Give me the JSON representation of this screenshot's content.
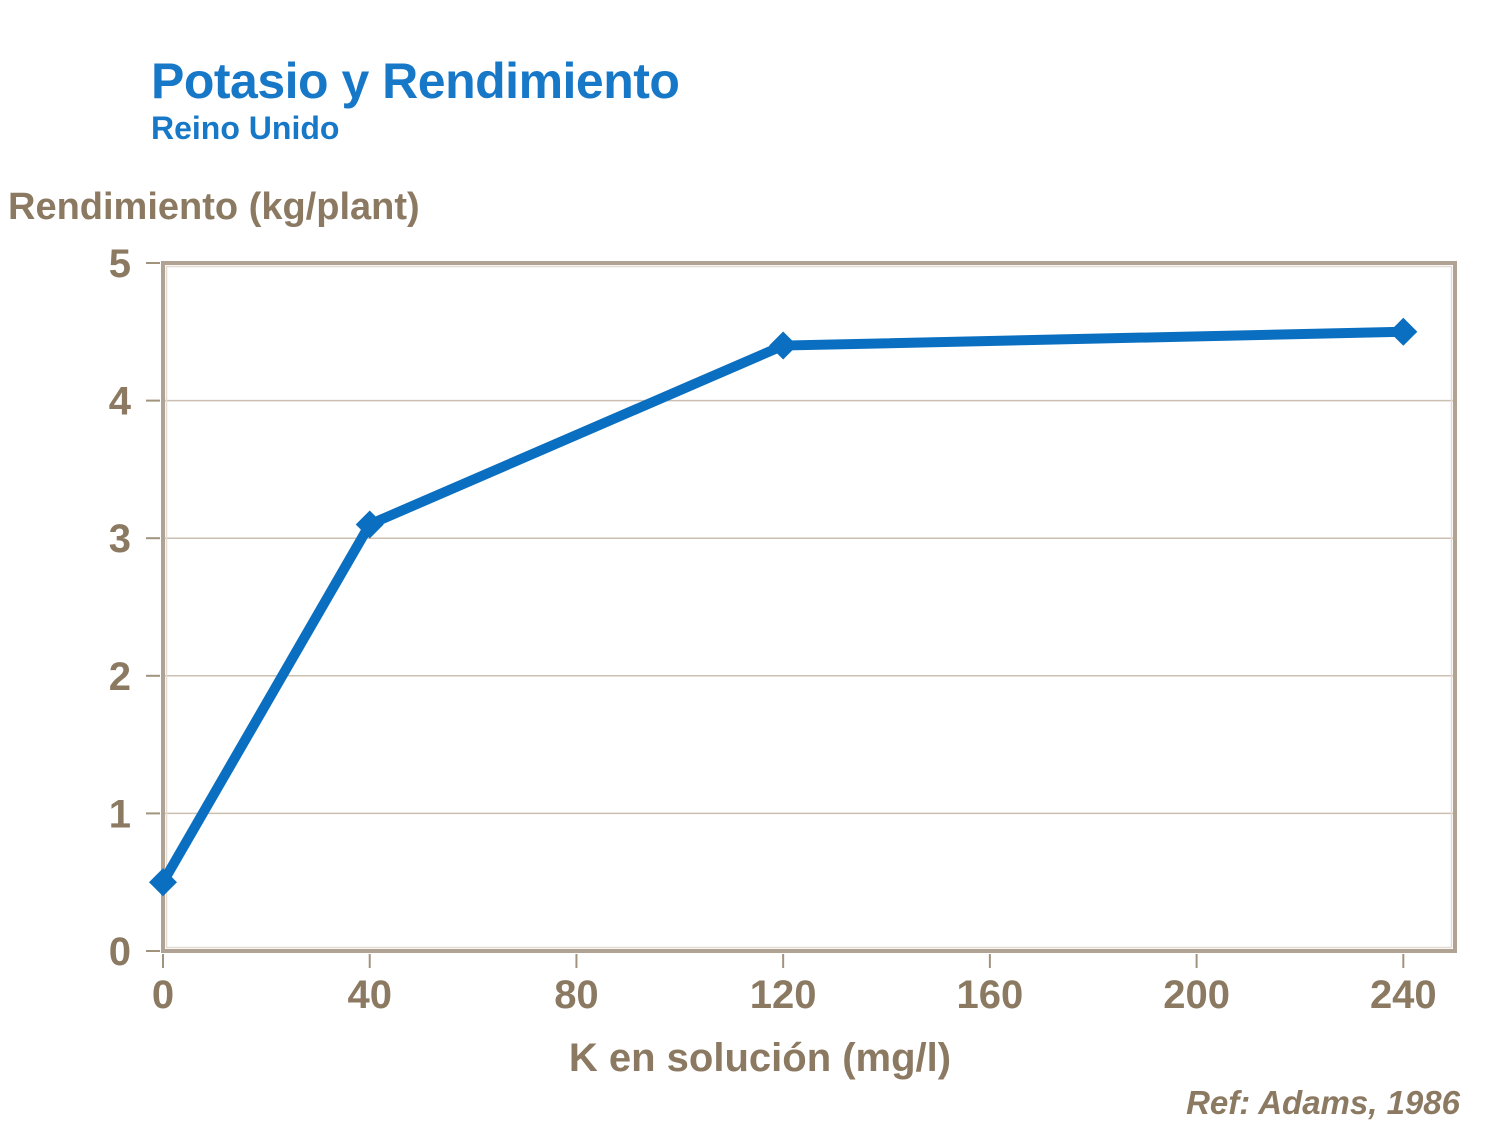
{
  "chart_data": {
    "type": "line",
    "title": "Potasio y Rendimiento",
    "subtitle": "Reino Unido",
    "xlabel": "K en solución (mg/l)",
    "ylabel": "Rendimiento (kg/plant)",
    "reference": "Ref: Adams, 1986",
    "x": [
      0,
      40,
      120,
      240
    ],
    "series": [
      {
        "name": "Rendimiento",
        "values": [
          0.5,
          3.1,
          4.4,
          4.5
        ]
      }
    ],
    "xlim": [
      0,
      250
    ],
    "ylim": [
      0,
      5
    ],
    "xticks": [
      0,
      40,
      80,
      120,
      160,
      200,
      240
    ],
    "yticks": [
      0,
      1,
      2,
      3,
      4,
      5
    ],
    "grid": "horizontal",
    "legend": "none",
    "marker": "diamond",
    "colors": {
      "title_blue": "#1878C8",
      "line_blue": "#0A6FC0",
      "axis_text_brown": "#8B7962",
      "frame_taupe": "#B0A394",
      "frame_inner_highlight": "#E4DCD2",
      "gridline": "#CBBFB1",
      "tick": "#A2937F",
      "background": "#FFFFFF"
    }
  }
}
